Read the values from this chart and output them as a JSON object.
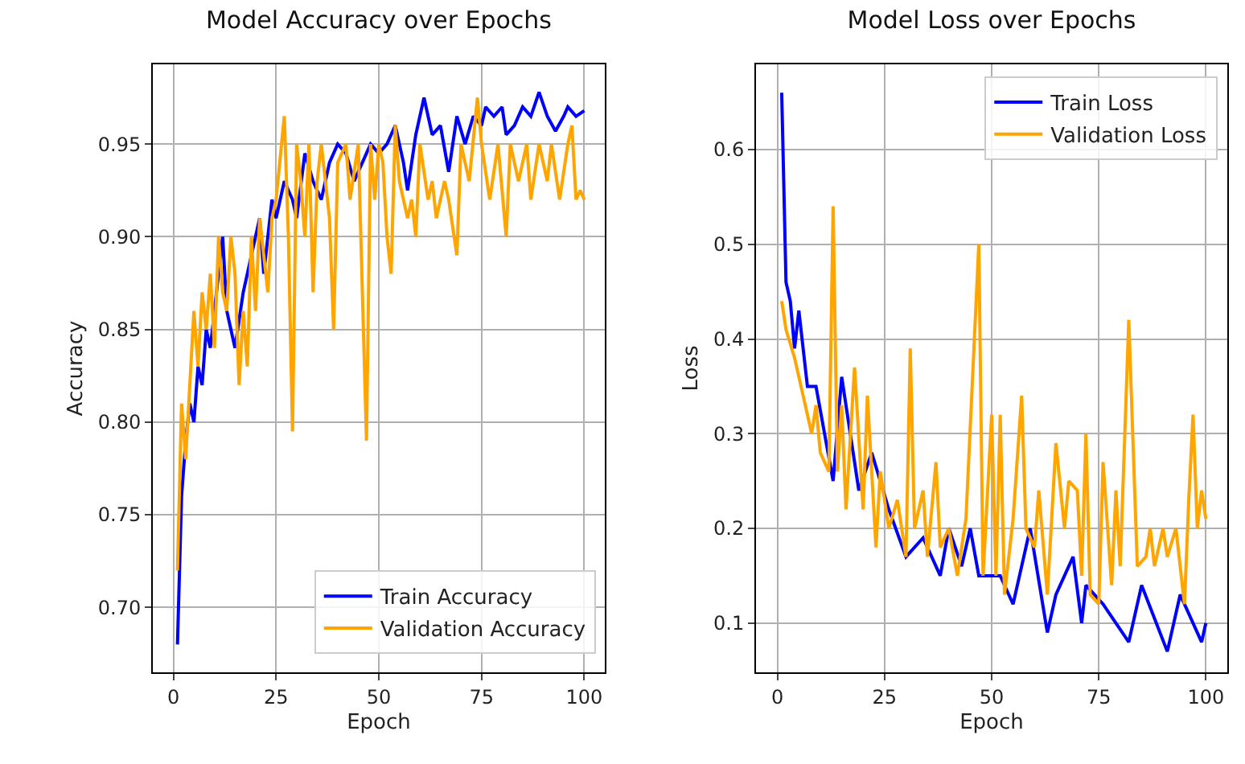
{
  "chart_data": [
    {
      "type": "line",
      "title": "Model Accuracy over Epochs",
      "xlabel": "Epoch",
      "ylabel": "Accuracy",
      "xlim": [
        -5,
        105
      ],
      "xticks": [
        0,
        25,
        50,
        75,
        100
      ],
      "ylim": [
        0.665,
        0.993
      ],
      "yticks": [
        {
          "value": 0.7,
          "label": "0.70"
        },
        0.75,
        {
          "value": 0.8,
          "label": "0.80"
        },
        0.85,
        {
          "value": 0.9,
          "label": "0.90"
        },
        0.95
      ],
      "grid": true,
      "legend": "bottom right",
      "line_style": "solid",
      "marker": "none",
      "series": [
        {
          "name": "Train Accuracy",
          "color": "#0000ff",
          "x": [
            1,
            2,
            3,
            4,
            5,
            6,
            7,
            8,
            9,
            10,
            11,
            12,
            13,
            15,
            17,
            19,
            21,
            22,
            24,
            25,
            27,
            29,
            30,
            32,
            34,
            36,
            38,
            40,
            42,
            44,
            46,
            48,
            50,
            52,
            54,
            56,
            57,
            59,
            61,
            63,
            65,
            67,
            69,
            71,
            73,
            75,
            76,
            78,
            80,
            81,
            83,
            85,
            87,
            89,
            91,
            93,
            95,
            96,
            98,
            100
          ],
          "values": [
            0.68,
            0.76,
            0.79,
            0.81,
            0.8,
            0.83,
            0.82,
            0.85,
            0.84,
            0.86,
            0.88,
            0.9,
            0.86,
            0.84,
            0.87,
            0.89,
            0.91,
            0.88,
            0.92,
            0.91,
            0.93,
            0.92,
            0.91,
            0.945,
            0.93,
            0.92,
            0.94,
            0.95,
            0.945,
            0.93,
            0.94,
            0.95,
            0.945,
            0.95,
            0.96,
            0.94,
            0.925,
            0.955,
            0.975,
            0.955,
            0.96,
            0.935,
            0.965,
            0.95,
            0.965,
            0.96,
            0.97,
            0.965,
            0.97,
            0.955,
            0.96,
            0.97,
            0.965,
            0.978,
            0.965,
            0.957,
            0.965,
            0.97,
            0.965,
            0.968
          ]
        },
        {
          "name": "Validation Accuracy",
          "color": "#ffa500",
          "x": [
            1,
            2,
            3,
            4,
            5,
            6,
            7,
            8,
            9,
            10,
            11,
            12,
            13,
            14,
            15,
            16,
            17,
            18,
            19,
            20,
            21,
            22,
            23,
            24,
            25,
            27,
            28,
            29,
            30,
            31,
            32,
            33,
            34,
            35,
            36,
            38,
            39,
            40,
            42,
            43,
            45,
            47,
            48,
            49,
            50,
            51,
            52,
            53,
            54,
            55,
            57,
            58,
            59,
            60,
            62,
            63,
            64,
            66,
            67,
            69,
            70,
            72,
            74,
            75,
            77,
            79,
            81,
            82,
            84,
            86,
            87,
            89,
            91,
            92,
            94,
            96,
            97,
            98,
            99,
            100
          ],
          "values": [
            0.72,
            0.81,
            0.78,
            0.82,
            0.86,
            0.83,
            0.87,
            0.85,
            0.88,
            0.84,
            0.9,
            0.87,
            0.86,
            0.9,
            0.88,
            0.82,
            0.86,
            0.83,
            0.9,
            0.86,
            0.91,
            0.89,
            0.87,
            0.91,
            0.92,
            0.965,
            0.9,
            0.795,
            0.95,
            0.93,
            0.9,
            0.95,
            0.87,
            0.93,
            0.95,
            0.91,
            0.85,
            0.94,
            0.95,
            0.92,
            0.95,
            0.79,
            0.95,
            0.92,
            0.95,
            0.94,
            0.9,
            0.88,
            0.96,
            0.93,
            0.91,
            0.92,
            0.9,
            0.95,
            0.92,
            0.93,
            0.91,
            0.93,
            0.92,
            0.89,
            0.95,
            0.93,
            0.975,
            0.95,
            0.92,
            0.95,
            0.9,
            0.95,
            0.93,
            0.95,
            0.92,
            0.95,
            0.93,
            0.95,
            0.92,
            0.95,
            0.96,
            0.92,
            0.925,
            0.92
          ]
        }
      ]
    },
    {
      "type": "line",
      "title": "Model Loss over Epochs",
      "xlabel": "Epoch",
      "ylabel": "Loss",
      "xlim": [
        -5,
        105
      ],
      "xticks": [
        0,
        25,
        50,
        75,
        100
      ],
      "ylim": [
        0.048,
        0.69
      ],
      "yticks": [
        0.1,
        0.2,
        0.3,
        0.4,
        0.5,
        0.6
      ],
      "grid": true,
      "legend": "top right",
      "line_style": "solid",
      "marker": "none",
      "series": [
        {
          "name": "Train Loss",
          "color": "#0000ff",
          "x": [
            1,
            2,
            3,
            4,
            5,
            7,
            9,
            13,
            15,
            19,
            22,
            24,
            26,
            30,
            34,
            38,
            40,
            43,
            45,
            47,
            52,
            55,
            59,
            63,
            65,
            69,
            71,
            72,
            76,
            82,
            85,
            91,
            94,
            99,
            100
          ],
          "values": [
            0.66,
            0.46,
            0.44,
            0.39,
            0.43,
            0.35,
            0.35,
            0.25,
            0.36,
            0.24,
            0.28,
            0.25,
            0.22,
            0.17,
            0.19,
            0.15,
            0.2,
            0.16,
            0.2,
            0.15,
            0.15,
            0.12,
            0.2,
            0.09,
            0.13,
            0.17,
            0.1,
            0.14,
            0.12,
            0.08,
            0.14,
            0.07,
            0.13,
            0.08,
            0.1
          ]
        },
        {
          "name": "Validation Loss",
          "color": "#ffa500",
          "x": [
            1,
            2,
            4,
            6,
            8,
            9,
            10,
            12,
            13,
            14,
            15,
            16,
            18,
            20,
            21,
            23,
            24,
            26,
            28,
            30,
            31,
            32,
            34,
            35,
            37,
            38,
            40,
            42,
            44,
            47,
            48,
            50,
            51,
            52,
            53,
            55,
            57,
            58,
            60,
            61,
            63,
            65,
            67,
            68,
            70,
            71,
            72,
            73,
            75,
            76,
            78,
            79,
            80,
            82,
            84,
            86,
            87,
            88,
            90,
            91,
            93,
            95,
            96,
            97,
            98,
            99,
            100
          ],
          "values": [
            0.44,
            0.41,
            0.38,
            0.34,
            0.3,
            0.33,
            0.28,
            0.26,
            0.54,
            0.26,
            0.33,
            0.22,
            0.37,
            0.22,
            0.34,
            0.18,
            0.26,
            0.2,
            0.23,
            0.17,
            0.39,
            0.2,
            0.24,
            0.17,
            0.27,
            0.18,
            0.2,
            0.15,
            0.21,
            0.5,
            0.15,
            0.32,
            0.15,
            0.32,
            0.13,
            0.21,
            0.34,
            0.2,
            0.18,
            0.24,
            0.13,
            0.29,
            0.2,
            0.25,
            0.24,
            0.15,
            0.3,
            0.13,
            0.12,
            0.27,
            0.14,
            0.24,
            0.16,
            0.42,
            0.16,
            0.17,
            0.2,
            0.16,
            0.2,
            0.17,
            0.2,
            0.12,
            0.23,
            0.32,
            0.2,
            0.24,
            0.21
          ]
        }
      ]
    }
  ]
}
